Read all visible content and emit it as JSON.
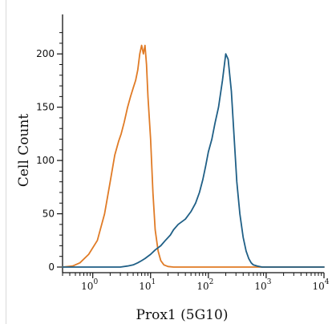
{
  "chart_data": {
    "type": "line",
    "title": "",
    "xlabel": "Prox1 (5G10)",
    "ylabel": "Cell Count",
    "x_scale": "log",
    "xlim": [
      0.3,
      10000
    ],
    "ylim": [
      0,
      225
    ],
    "grid": false,
    "legend": "none",
    "y_ticks": [
      {
        "value": 0,
        "label": "0"
      },
      {
        "value": 50,
        "label": "50"
      },
      {
        "value": 100,
        "label": "100"
      },
      {
        "value": 150,
        "label": "150"
      },
      {
        "value": 200,
        "label": "200"
      }
    ],
    "x_ticks": [
      {
        "value": 1,
        "base": "10",
        "exp": "0"
      },
      {
        "value": 10,
        "base": "10",
        "exp": "1"
      },
      {
        "value": 100,
        "base": "10",
        "exp": "2"
      },
      {
        "value": 1000,
        "base": "10",
        "exp": "3"
      },
      {
        "value": 10000,
        "base": "10",
        "exp": "4"
      }
    ],
    "series": [
      {
        "color": "#e07b26",
        "x": [
          0.3,
          0.45,
          0.6,
          0.85,
          1.2,
          1.6,
          2.0,
          2.4,
          2.8,
          3.1,
          3.5,
          4.0,
          4.5,
          5.0,
          5.5,
          6.0,
          6.5,
          7.0,
          7.5,
          8.0,
          8.5,
          9.0,
          10.0,
          11.0,
          12.0,
          13.5,
          15.0,
          17.0,
          20.0,
          25.0,
          40.0,
          100.0,
          1000.0,
          10000.0
        ],
        "y": [
          0,
          1,
          4,
          12,
          25,
          50,
          80,
          105,
          118,
          125,
          136,
          150,
          160,
          168,
          175,
          185,
          200,
          208,
          200,
          208,
          190,
          160,
          120,
          70,
          35,
          15,
          6,
          2,
          0.5,
          0,
          0,
          0,
          0,
          0
        ]
      },
      {
        "color": "#1f5f86",
        "x": [
          0.3,
          1.0,
          2.0,
          3.0,
          4.0,
          5.0,
          6.0,
          7.0,
          8.0,
          10.0,
          12.0,
          15.0,
          18.0,
          22.0,
          25.0,
          30.0,
          40.0,
          50.0,
          60.0,
          70.0,
          80.0,
          90.0,
          100.0,
          115.0,
          130.0,
          150.0,
          175.0,
          200.0,
          220.0,
          250.0,
          280.0,
          310.0,
          350.0,
          400.0,
          450.0,
          500.0,
          550.0,
          600.0,
          700.0,
          850.0,
          1000.0,
          10000.0
        ],
        "y": [
          0,
          0,
          0,
          0,
          1,
          2,
          4,
          6,
          8,
          12,
          16,
          20,
          25,
          30,
          35,
          40,
          45,
          52,
          60,
          70,
          82,
          95,
          108,
          120,
          135,
          150,
          175,
          200,
          195,
          165,
          120,
          80,
          50,
          28,
          15,
          8,
          4,
          2,
          1,
          0,
          0,
          0
        ]
      }
    ]
  }
}
